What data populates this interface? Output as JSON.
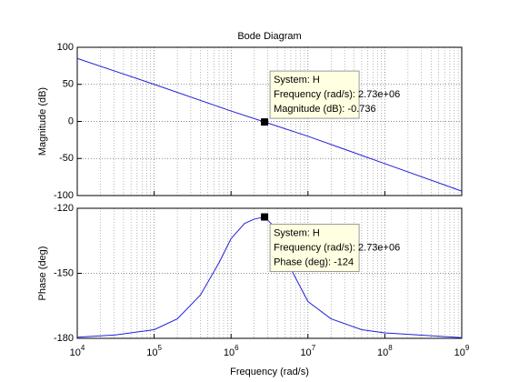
{
  "chart_data": [
    {
      "type": "line",
      "title": "Bode Diagram",
      "ylabel": "Magnitude (dB)",
      "xlog": true,
      "grid": true,
      "x": [
        10000,
        100000,
        1000000,
        2730000,
        10000000,
        100000000,
        1000000000
      ],
      "series": [
        {
          "color": "#2020d8",
          "values": [
            85,
            50,
            14,
            -0.736,
            -20,
            -57,
            -94
          ]
        }
      ],
      "xlim": [
        10000,
        1000000000
      ],
      "xticks": [
        10000,
        100000,
        1000000,
        10000000,
        100000000,
        1000000000
      ],
      "ylim": [
        -100,
        100
      ],
      "yticks": [
        100,
        50,
        0,
        -50,
        -100
      ],
      "datatip": {
        "x": 2730000,
        "y": -0.736,
        "lines": [
          "System: H",
          "Frequency (rad/s): 2.73e+06",
          "Magnitude (dB): -0.736"
        ]
      }
    },
    {
      "type": "line",
      "ylabel": "Phase (deg)",
      "xlabel": "Frequency  (rad/s)",
      "xlog": true,
      "grid": true,
      "x": [
        10000,
        30000,
        100000,
        200000,
        400000,
        700000,
        1000000,
        1500000,
        2000000,
        2730000,
        4000000,
        6000000,
        10000000,
        20000000,
        50000000,
        100000000,
        1000000000
      ],
      "series": [
        {
          "color": "#2020d8",
          "values": [
            -179.5,
            -178.5,
            -176,
            -171,
            -160,
            -145,
            -134,
            -127,
            -125,
            -124,
            -130,
            -148,
            -163,
            -171,
            -176,
            -177.5,
            -179.7
          ]
        }
      ],
      "xlim": [
        10000,
        1000000000
      ],
      "xticks": [
        {
          "value": 10000,
          "label": "10",
          "exponent": "4"
        },
        {
          "value": 100000,
          "label": "10",
          "exponent": "5"
        },
        {
          "value": 1000000,
          "label": "10",
          "exponent": "6"
        },
        {
          "value": 10000000,
          "label": "10",
          "exponent": "7"
        },
        {
          "value": 100000000,
          "label": "10",
          "exponent": "8"
        },
        {
          "value": 1000000000,
          "label": "10",
          "exponent": "9"
        }
      ],
      "ylim": [
        -180,
        -120
      ],
      "yticks": [
        -120,
        -150,
        -180
      ],
      "datatip": {
        "x": 2730000,
        "y": -124,
        "lines": [
          "System: H",
          "Frequency (rad/s): 2.73e+06",
          "Phase (deg): -124"
        ]
      }
    }
  ]
}
